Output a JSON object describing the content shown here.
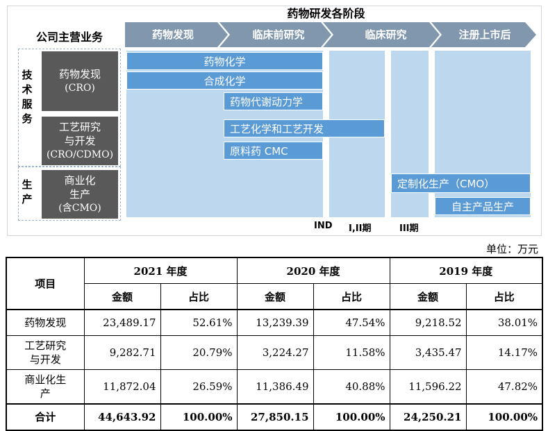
{
  "diagram": {
    "stage_header": "药物研发各阶段",
    "business_header": "公司主营业务",
    "phases": [
      {
        "label": "药物发现"
      },
      {
        "label": "临床前研究"
      },
      {
        "label": "临床研究"
      },
      {
        "label": "注册上市后"
      }
    ],
    "groups": [
      {
        "label": "技术服务",
        "boxes": [
          {
            "title": "药物发现",
            "sub": "(CRO)"
          },
          {
            "title_line1": "工艺研究",
            "title_line2": "与开发",
            "sub": "(CRO/CDMO)"
          }
        ]
      },
      {
        "label": "生产",
        "boxes": [
          {
            "title_line1": "商业化",
            "title_line2": "生产",
            "sub": "(含CMO)"
          }
        ]
      }
    ],
    "bars": [
      {
        "label": "药物化学"
      },
      {
        "label": "合成化学"
      },
      {
        "label": "药物代谢动力学"
      },
      {
        "label": "工艺化学和工艺开发"
      },
      {
        "label": "原料药 CMC"
      },
      {
        "label": "定制化生产（CMO）"
      },
      {
        "label": "自主产品生产"
      }
    ],
    "milestones": [
      "IND",
      "I,II期",
      "III期"
    ],
    "colors": {
      "bar": "#5b9bd5",
      "column": "#bdd7ee",
      "chevron": "#8097ad",
      "grey_box": "#595959"
    }
  },
  "table": {
    "unit": "单位：万元",
    "header": {
      "item": "项目",
      "years": [
        "2021 年度",
        "2020 年度",
        "2019 年度"
      ],
      "amount": "金额",
      "ratio": "占比"
    },
    "rows": [
      {
        "label": "药物发现",
        "values": [
          "23,489.17",
          "52.61%",
          "13,239.39",
          "47.54%",
          "9,218.52",
          "38.01%"
        ]
      },
      {
        "label_line1": "工艺研究",
        "label_line2": "与开发",
        "values": [
          "9,282.71",
          "20.79%",
          "3,224.27",
          "11.58%",
          "3,435.47",
          "14.17%"
        ]
      },
      {
        "label_line1": "商业化生",
        "label_line2": "产",
        "values": [
          "11,872.04",
          "26.59%",
          "11,386.49",
          "40.88%",
          "11,596.22",
          "47.82%"
        ]
      }
    ],
    "total": {
      "label": "合计",
      "values": [
        "44,643.92",
        "100.00%",
        "27,850.15",
        "100.00%",
        "24,250.21",
        "100.00%"
      ]
    }
  }
}
